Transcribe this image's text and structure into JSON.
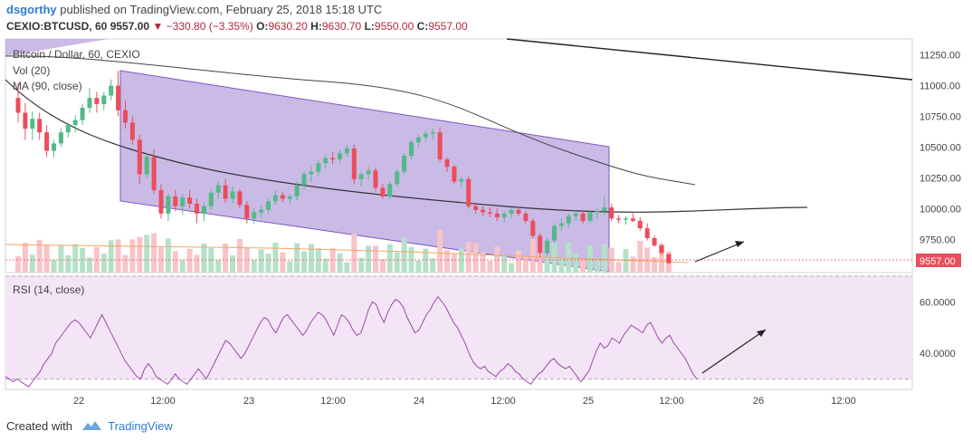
{
  "header": {
    "author": "dsgorthy",
    "published_text": "published on TradingView.com, February 25, 2018 15:18 UTC",
    "symbol_interval": "CEXIO:BTCUSD, 60",
    "last": "9557.00",
    "change": "−330.80 (−3.35%)",
    "open_label": "O:",
    "open": "9630.20",
    "high_label": "H:",
    "high": "9630.70",
    "low_label": "L:",
    "low": "9550.00",
    "close_label": "C:",
    "close": "9557.00"
  },
  "legend": {
    "series_title": "Bitcoin / Dollar, 60, CEXIO",
    "volume": "Vol (20)",
    "ma": "MA (90, close)",
    "rsi": "RSI (14, close)"
  },
  "price_badge": "9557.00",
  "footer": {
    "created_with": "Created with",
    "brand": "TradingView"
  },
  "colors": {
    "up": "#53b987",
    "down": "#eb4d5c",
    "channel_fill": "#b39ddb",
    "channel_line": "#7e57c2",
    "ma_line": "#555555",
    "rsi_line": "#9c4aa8",
    "rsi_band": "#f3e5f5",
    "vol_up": "#b6e1c9",
    "vol_down": "#f8c4c8"
  },
  "chart_data": [
    {
      "type": "candlestick",
      "title": "Bitcoin / Dollar, 60, CEXIO",
      "y_axis_ticks": [
        11250,
        11000,
        10750,
        10500,
        10250,
        10000,
        9750
      ],
      "ylim": [
        9480,
        11380
      ],
      "x_axis_ticks": [
        "22",
        "12:00",
        "23",
        "12:00",
        "24",
        "12:00",
        "25",
        "12:00",
        "26",
        "12:00"
      ],
      "last_price": 9557.0,
      "ohlc_hourly_approx": [
        [
          10900,
          11020,
          10700,
          10780
        ],
        [
          10780,
          10860,
          10560,
          10650
        ],
        [
          10650,
          10790,
          10560,
          10730
        ],
        [
          10730,
          10780,
          10560,
          10620
        ],
        [
          10620,
          10680,
          10420,
          10470
        ],
        [
          10470,
          10560,
          10420,
          10530
        ],
        [
          10530,
          10650,
          10500,
          10620
        ],
        [
          10620,
          10700,
          10580,
          10680
        ],
        [
          10680,
          10760,
          10620,
          10720
        ],
        [
          10720,
          10850,
          10680,
          10820
        ],
        [
          10820,
          10980,
          10780,
          10900
        ],
        [
          10900,
          10950,
          10780,
          10850
        ],
        [
          10850,
          10950,
          10800,
          10920
        ],
        [
          10920,
          11050,
          10880,
          11000
        ],
        [
          11000,
          11120,
          10750,
          10800
        ],
        [
          10800,
          10880,
          10650,
          10700
        ],
        [
          10700,
          10750,
          10520,
          10560
        ],
        [
          10560,
          10600,
          10200,
          10280
        ],
        [
          10280,
          10450,
          10250,
          10420
        ],
        [
          10420,
          10480,
          10120,
          10150
        ],
        [
          10150,
          10200,
          9920,
          9960
        ],
        [
          9960,
          10120,
          9900,
          10100
        ],
        [
          10100,
          10150,
          9980,
          10020
        ],
        [
          10020,
          10120,
          9950,
          10090
        ],
        [
          10090,
          10150,
          10000,
          10040
        ],
        [
          10040,
          10080,
          9880,
          9960
        ],
        [
          9960,
          10050,
          9900,
          10020
        ],
        [
          10020,
          10160,
          9990,
          10130
        ],
        [
          10130,
          10220,
          10080,
          10190
        ],
        [
          10190,
          10240,
          10050,
          10080
        ],
        [
          10080,
          10180,
          10040,
          10140
        ],
        [
          10140,
          10160,
          10000,
          10030
        ],
        [
          10030,
          10060,
          9880,
          9920
        ],
        [
          9920,
          10000,
          9880,
          9970
        ],
        [
          9970,
          10020,
          9920,
          9990
        ],
        [
          9990,
          10080,
          9960,
          10060
        ],
        [
          10060,
          10150,
          10030,
          10110
        ],
        [
          10110,
          10140,
          10050,
          10080
        ],
        [
          10080,
          10120,
          10040,
          10100
        ],
        [
          10100,
          10220,
          10070,
          10190
        ],
        [
          10190,
          10300,
          10150,
          10280
        ],
        [
          10280,
          10340,
          10220,
          10300
        ],
        [
          10300,
          10400,
          10260,
          10370
        ],
        [
          10370,
          10440,
          10330,
          10410
        ],
        [
          10410,
          10460,
          10360,
          10400
        ],
        [
          10400,
          10480,
          10370,
          10450
        ],
        [
          10450,
          10520,
          10420,
          10490
        ],
        [
          10490,
          10520,
          10200,
          10240
        ],
        [
          10240,
          10300,
          10180,
          10280
        ],
        [
          10280,
          10340,
          10240,
          10310
        ],
        [
          10310,
          10330,
          10140,
          10170
        ],
        [
          10170,
          10200,
          10080,
          10100
        ],
        [
          10100,
          10220,
          10080,
          10200
        ],
        [
          10200,
          10320,
          10180,
          10300
        ],
        [
          10300,
          10450,
          10280,
          10430
        ],
        [
          10430,
          10560,
          10400,
          10540
        ],
        [
          10540,
          10600,
          10500,
          10580
        ],
        [
          10580,
          10640,
          10540,
          10610
        ],
        [
          10610,
          10650,
          10560,
          10620
        ],
        [
          10620,
          10660,
          10380,
          10400
        ],
        [
          10400,
          10420,
          10300,
          10340
        ],
        [
          10340,
          10360,
          10200,
          10220
        ],
        [
          10220,
          10260,
          10170,
          10240
        ],
        [
          10240,
          10260,
          10000,
          10020
        ],
        [
          10020,
          10050,
          9960,
          9990
        ],
        [
          9990,
          10020,
          9940,
          9970
        ],
        [
          9970,
          10010,
          9930,
          9960
        ],
        [
          9960,
          10000,
          9900,
          9930
        ],
        [
          9930,
          9980,
          9890,
          9960
        ],
        [
          9960,
          10010,
          9920,
          9990
        ],
        [
          9990,
          10010,
          9940,
          9960
        ],
        [
          9960,
          9980,
          9880,
          9900
        ],
        [
          9900,
          9920,
          9760,
          9780
        ],
        [
          9780,
          9800,
          9600,
          9640
        ],
        [
          9640,
          9760,
          9620,
          9740
        ],
        [
          9740,
          9880,
          9720,
          9860
        ],
        [
          9860,
          9920,
          9820,
          9880
        ],
        [
          9880,
          9960,
          9850,
          9940
        ],
        [
          9940,
          9980,
          9900,
          9960
        ],
        [
          9960,
          9990,
          9880,
          9900
        ],
        [
          9900,
          9980,
          9880,
          9970
        ],
        [
          9970,
          10000,
          9920,
          9980
        ],
        [
          9980,
          10100,
          9950,
          10010
        ],
        [
          10010,
          10040,
          9900,
          9920
        ],
        [
          9920,
          9950,
          9880,
          9910
        ],
        [
          9910,
          9940,
          9870,
          9920
        ],
        [
          9920,
          9960,
          9890,
          9900
        ],
        [
          9900,
          9930,
          9820,
          9840
        ],
        [
          9840,
          9880,
          9740,
          9760
        ],
        [
          9760,
          9780,
          9690,
          9700
        ],
        [
          9700,
          9720,
          9620,
          9640
        ],
        [
          9630,
          9631,
          9550,
          9557
        ]
      ]
    },
    {
      "type": "bar",
      "title": "Vol (20)",
      "note": "hourly volume bars, green = up hour, red = down hour; relative heights only"
    },
    {
      "type": "line",
      "title": "RSI (14, close)",
      "y_axis_ticks": [
        60.0,
        40.0
      ],
      "ylim": [
        26,
        70
      ],
      "values": [
        31,
        30,
        29,
        30,
        29,
        28,
        27,
        29,
        31,
        33,
        36,
        38,
        40,
        44,
        46,
        48,
        50,
        52,
        53,
        52,
        50,
        48,
        46,
        49,
        52,
        55,
        52,
        49,
        46,
        43,
        40,
        37,
        35,
        33,
        31,
        30,
        34,
        36,
        34,
        31,
        30,
        29,
        28,
        30,
        32,
        30,
        29,
        28,
        30,
        32,
        34,
        32,
        30,
        33,
        36,
        39,
        42,
        45,
        44,
        42,
        40,
        38,
        40,
        43,
        46,
        49,
        52,
        54,
        53,
        50,
        48,
        51,
        54,
        55,
        53,
        51,
        49,
        47,
        49,
        52,
        54,
        56,
        55,
        53,
        50,
        47,
        51,
        55,
        54,
        52,
        49,
        47,
        48,
        52,
        57,
        60,
        59,
        55,
        52,
        56,
        59,
        61,
        60,
        58,
        54,
        51,
        48,
        49,
        52,
        55,
        57,
        60,
        62,
        60,
        58,
        55,
        52,
        50,
        47,
        44,
        40,
        37,
        35,
        34,
        35,
        33,
        32,
        31,
        33,
        34,
        36,
        35,
        33,
        32,
        30,
        29,
        28,
        30,
        32,
        33,
        35,
        37,
        38,
        36,
        35,
        34,
        35,
        33,
        31,
        29,
        31,
        33,
        37,
        41,
        44,
        42,
        43,
        46,
        45,
        44,
        47,
        49,
        51,
        50,
        49,
        48,
        51,
        52,
        49,
        46,
        44,
        46,
        47,
        44,
        42,
        40,
        38,
        35,
        32,
        30
      ]
    }
  ]
}
